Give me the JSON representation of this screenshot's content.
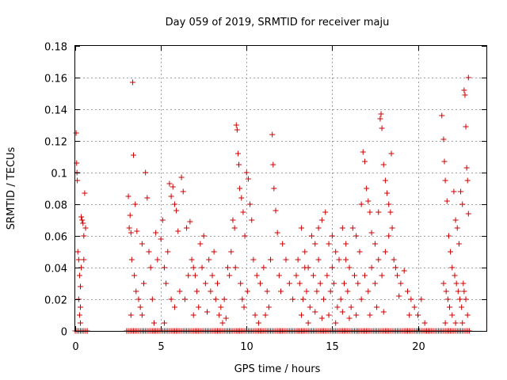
{
  "chart_data": {
    "type": "scatter",
    "title": "Day 059 of 2019, SRMTID for receiver maju",
    "xlabel": "GPS time / hours",
    "ylabel": "SRMTID / TECUs",
    "xlim": [
      0,
      24
    ],
    "ylim": [
      0,
      0.18
    ],
    "xticks": [
      0,
      5,
      10,
      15,
      20
    ],
    "xtick_labels": [
      "0",
      "5",
      "10",
      "15",
      "20"
    ],
    "yticks": [
      0,
      0.02,
      0.04,
      0.06,
      0.08,
      0.1,
      0.12,
      0.14,
      0.16,
      0.18
    ],
    "ytick_labels": [
      "0",
      "0.02",
      "0.04",
      "0.06",
      "0.08",
      "0.1",
      "0.12",
      "0.14",
      "0.16",
      "0.18"
    ],
    "grid": true,
    "legend": "none",
    "marker": "+",
    "color": "#cc0000",
    "series": [
      {
        "name": "SRMTID",
        "points": [
          [
            0.05,
            0.125
          ],
          [
            0.08,
            0.106
          ],
          [
            0.1,
            0.1
          ],
          [
            0.12,
            0.095
          ],
          [
            0.15,
            0.05
          ],
          [
            0.2,
            0.045
          ],
          [
            0.25,
            0.035
          ],
          [
            0.3,
            0.028
          ],
          [
            0.2,
            0.02
          ],
          [
            0.3,
            0.015
          ],
          [
            0.35,
            0.072
          ],
          [
            0.4,
            0.07
          ],
          [
            0.45,
            0.068
          ],
          [
            0.5,
            0.06
          ],
          [
            0.55,
            0.087
          ],
          [
            0.6,
            0.065
          ],
          [
            0.35,
            0.04
          ],
          [
            0.5,
            0.045
          ],
          [
            0.25,
            0.01
          ],
          [
            0.3,
            0.005
          ],
          [
            3.1,
            0.085
          ],
          [
            3.2,
            0.073
          ],
          [
            3.15,
            0.065
          ],
          [
            3.25,
            0.062
          ],
          [
            3.35,
            0.157
          ],
          [
            3.4,
            0.111
          ],
          [
            3.5,
            0.08
          ],
          [
            3.6,
            0.063
          ],
          [
            3.3,
            0.045
          ],
          [
            3.45,
            0.035
          ],
          [
            3.55,
            0.025
          ],
          [
            3.7,
            0.02
          ],
          [
            3.8,
            0.015
          ],
          [
            3.9,
            0.01
          ],
          [
            4.0,
            0.03
          ],
          [
            4.1,
            0.1
          ],
          [
            4.2,
            0.084
          ],
          [
            4.3,
            0.05
          ],
          [
            4.4,
            0.04
          ],
          [
            4.5,
            0.02
          ],
          [
            3.25,
            0.01
          ],
          [
            3.9,
            0.055
          ],
          [
            4.6,
            0.005
          ],
          [
            4.7,
            0.062
          ],
          [
            4.8,
            0.045
          ],
          [
            5.0,
            0.058
          ],
          [
            5.1,
            0.07
          ],
          [
            5.2,
            0.04
          ],
          [
            5.3,
            0.03
          ],
          [
            5.5,
            0.093
          ],
          [
            5.6,
            0.085
          ],
          [
            5.7,
            0.091
          ],
          [
            5.8,
            0.08
          ],
          [
            5.9,
            0.076
          ],
          [
            6.0,
            0.063
          ],
          [
            6.2,
            0.097
          ],
          [
            6.3,
            0.088
          ],
          [
            6.5,
            0.065
          ],
          [
            6.7,
            0.069
          ],
          [
            6.8,
            0.045
          ],
          [
            6.9,
            0.04
          ],
          [
            7.0,
            0.035
          ],
          [
            5.4,
            0.05
          ],
          [
            5.6,
            0.02
          ],
          [
            5.8,
            0.015
          ],
          [
            6.1,
            0.025
          ],
          [
            6.4,
            0.02
          ],
          [
            6.6,
            0.035
          ],
          [
            7.1,
            0.025
          ],
          [
            7.2,
            0.015
          ],
          [
            7.4,
            0.04
          ],
          [
            7.6,
            0.03
          ],
          [
            7.8,
            0.045
          ],
          [
            8.0,
            0.035
          ],
          [
            8.2,
            0.02
          ],
          [
            8.4,
            0.01
          ],
          [
            8.6,
            0.005
          ],
          [
            7.3,
            0.055
          ],
          [
            7.5,
            0.06
          ],
          [
            7.9,
            0.025
          ],
          [
            8.1,
            0.05
          ],
          [
            8.3,
            0.03
          ],
          [
            8.5,
            0.015
          ],
          [
            8.7,
            0.02
          ],
          [
            8.8,
            0.008
          ],
          [
            8.9,
            0.04
          ],
          [
            7.7,
            0.012
          ],
          [
            6.9,
            0.01
          ],
          [
            5.2,
            0.005
          ],
          [
            9.0,
            0.035
          ],
          [
            9.1,
            0.05
          ],
          [
            9.2,
            0.07
          ],
          [
            9.3,
            0.065
          ],
          [
            9.4,
            0.13
          ],
          [
            9.45,
            0.127
          ],
          [
            9.5,
            0.112
          ],
          [
            9.55,
            0.105
          ],
          [
            9.6,
            0.09
          ],
          [
            9.7,
            0.084
          ],
          [
            9.8,
            0.075
          ],
          [
            9.9,
            0.06
          ],
          [
            10.0,
            0.1
          ],
          [
            10.1,
            0.096
          ],
          [
            10.2,
            0.08
          ],
          [
            10.3,
            0.07
          ],
          [
            9.35,
            0.04
          ],
          [
            9.65,
            0.03
          ],
          [
            9.75,
            0.02
          ],
          [
            9.85,
            0.015
          ],
          [
            10.05,
            0.025
          ],
          [
            10.4,
            0.045
          ],
          [
            10.6,
            0.035
          ],
          [
            10.8,
            0.03
          ],
          [
            11.0,
            0.04
          ],
          [
            11.2,
            0.025
          ],
          [
            11.4,
            0.045
          ],
          [
            11.5,
            0.124
          ],
          [
            11.55,
            0.105
          ],
          [
            11.6,
            0.09
          ],
          [
            11.7,
            0.076
          ],
          [
            11.8,
            0.062
          ],
          [
            11.3,
            0.015
          ],
          [
            11.9,
            0.035
          ],
          [
            12.0,
            0.025
          ],
          [
            12.1,
            0.055
          ],
          [
            12.3,
            0.045
          ],
          [
            12.5,
            0.03
          ],
          [
            12.7,
            0.02
          ],
          [
            12.9,
            0.035
          ],
          [
            10.5,
            0.01
          ],
          [
            10.7,
            0.005
          ],
          [
            11.1,
            0.01
          ],
          [
            13.0,
            0.045
          ],
          [
            13.2,
            0.065
          ],
          [
            13.4,
            0.05
          ],
          [
            13.6,
            0.04
          ],
          [
            13.8,
            0.06
          ],
          [
            14.0,
            0.055
          ],
          [
            14.2,
            0.065
          ],
          [
            14.4,
            0.07
          ],
          [
            14.6,
            0.075
          ],
          [
            14.8,
            0.055
          ],
          [
            15.0,
            0.06
          ],
          [
            15.2,
            0.05
          ],
          [
            15.4,
            0.045
          ],
          [
            15.6,
            0.065
          ],
          [
            15.8,
            0.055
          ],
          [
            16.0,
            0.04
          ],
          [
            16.2,
            0.065
          ],
          [
            16.4,
            0.06
          ],
          [
            13.1,
            0.03
          ],
          [
            13.3,
            0.02
          ],
          [
            13.5,
            0.025
          ],
          [
            13.7,
            0.015
          ],
          [
            13.9,
            0.035
          ],
          [
            14.1,
            0.025
          ],
          [
            14.3,
            0.03
          ],
          [
            14.5,
            0.02
          ],
          [
            14.7,
            0.035
          ],
          [
            14.9,
            0.025
          ],
          [
            15.1,
            0.03
          ],
          [
            15.3,
            0.015
          ],
          [
            15.5,
            0.02
          ],
          [
            15.7,
            0.03
          ],
          [
            15.9,
            0.025
          ],
          [
            16.1,
            0.015
          ],
          [
            16.3,
            0.035
          ],
          [
            13.2,
            0.01
          ],
          [
            13.6,
            0.005
          ],
          [
            14.0,
            0.012
          ],
          [
            14.4,
            0.008
          ],
          [
            14.8,
            0.01
          ],
          [
            15.2,
            0.005
          ],
          [
            15.6,
            0.012
          ],
          [
            16.0,
            0.008
          ],
          [
            16.4,
            0.01
          ],
          [
            13.4,
            0.04
          ],
          [
            14.2,
            0.045
          ],
          [
            15.0,
            0.04
          ],
          [
            15.8,
            0.045
          ],
          [
            16.6,
            0.05
          ],
          [
            16.7,
            0.08
          ],
          [
            16.8,
            0.113
          ],
          [
            16.9,
            0.107
          ],
          [
            17.0,
            0.09
          ],
          [
            17.1,
            0.082
          ],
          [
            17.2,
            0.075
          ],
          [
            17.3,
            0.062
          ],
          [
            17.5,
            0.055
          ],
          [
            17.7,
            0.075
          ],
          [
            17.8,
            0.134
          ],
          [
            17.85,
            0.137
          ],
          [
            17.9,
            0.128
          ],
          [
            18.0,
            0.105
          ],
          [
            18.1,
            0.095
          ],
          [
            18.2,
            0.087
          ],
          [
            18.3,
            0.08
          ],
          [
            18.4,
            0.075
          ],
          [
            18.45,
            0.112
          ],
          [
            18.5,
            0.065
          ],
          [
            16.5,
            0.03
          ],
          [
            16.7,
            0.02
          ],
          [
            16.9,
            0.035
          ],
          [
            17.1,
            0.025
          ],
          [
            17.3,
            0.04
          ],
          [
            17.5,
            0.03
          ],
          [
            17.7,
            0.045
          ],
          [
            17.9,
            0.035
          ],
          [
            18.1,
            0.05
          ],
          [
            18.3,
            0.06
          ],
          [
            18.6,
            0.045
          ],
          [
            18.7,
            0.04
          ],
          [
            18.8,
            0.035
          ],
          [
            19.0,
            0.03
          ],
          [
            19.2,
            0.038
          ],
          [
            19.4,
            0.025
          ],
          [
            19.6,
            0.02
          ],
          [
            19.8,
            0.015
          ],
          [
            20.0,
            0.01
          ],
          [
            20.2,
            0.02
          ],
          [
            20.4,
            0.005
          ],
          [
            17.2,
            0.01
          ],
          [
            17.6,
            0.015
          ],
          [
            18.0,
            0.012
          ],
          [
            18.9,
            0.022
          ],
          [
            19.5,
            0.01
          ],
          [
            21.4,
            0.136
          ],
          [
            21.5,
            0.121
          ],
          [
            21.55,
            0.107
          ],
          [
            21.6,
            0.095
          ],
          [
            21.7,
            0.082
          ],
          [
            21.8,
            0.06
          ],
          [
            21.9,
            0.05
          ],
          [
            22.0,
            0.04
          ],
          [
            22.1,
            0.088
          ],
          [
            22.2,
            0.07
          ],
          [
            22.3,
            0.065
          ],
          [
            22.4,
            0.055
          ],
          [
            22.5,
            0.088
          ],
          [
            22.6,
            0.08
          ],
          [
            22.7,
            0.152
          ],
          [
            22.75,
            0.149
          ],
          [
            22.8,
            0.129
          ],
          [
            22.85,
            0.103
          ],
          [
            22.9,
            0.095
          ],
          [
            22.95,
            0.074
          ],
          [
            21.5,
            0.03
          ],
          [
            21.65,
            0.025
          ],
          [
            21.75,
            0.02
          ],
          [
            21.85,
            0.015
          ],
          [
            22.0,
            0.01
          ],
          [
            22.15,
            0.035
          ],
          [
            22.25,
            0.03
          ],
          [
            22.35,
            0.025
          ],
          [
            22.45,
            0.02
          ],
          [
            22.55,
            0.015
          ],
          [
            22.65,
            0.03
          ],
          [
            22.7,
            0.025
          ],
          [
            22.8,
            0.02
          ],
          [
            22.9,
            0.01
          ],
          [
            22.95,
            0.16
          ],
          [
            21.6,
            0.005
          ],
          [
            22.2,
            0.005
          ],
          [
            22.6,
            0.005
          ]
        ],
        "zero_intervals": [
          [
            0.0,
            0.7
          ],
          [
            3.0,
            9.0
          ],
          [
            9.0,
            13.0
          ],
          [
            13.0,
            16.5
          ],
          [
            16.5,
            20.5
          ],
          [
            20.5,
            23.0
          ]
        ]
      }
    ]
  }
}
